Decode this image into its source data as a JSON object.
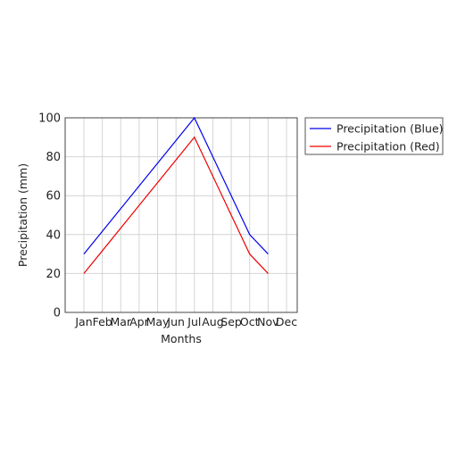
{
  "chart_data": {
    "type": "line",
    "categories": [
      "Jan",
      "Feb",
      "Mar",
      "Apr",
      "May",
      "Jun",
      "Jul",
      "Aug",
      "Sep",
      "Oct",
      "Nov",
      "Dec"
    ],
    "series": [
      {
        "name": "Precipitation (Blue)",
        "color": "#0000ee",
        "values": [
          30,
          null,
          null,
          null,
          null,
          null,
          100,
          null,
          null,
          40,
          30,
          null
        ]
      },
      {
        "name": "Precipitation (Red)",
        "color": "#ee0000",
        "values": [
          20,
          null,
          null,
          null,
          null,
          null,
          90,
          null,
          null,
          30,
          20,
          null
        ]
      }
    ],
    "title": "",
    "xlabel": "Months",
    "ylabel": "Precipitation (mm)",
    "ylim": [
      0,
      100
    ],
    "yticks": [
      0,
      20,
      40,
      60,
      80,
      100
    ],
    "grid": true,
    "legend_position": "outside-right-top"
  }
}
